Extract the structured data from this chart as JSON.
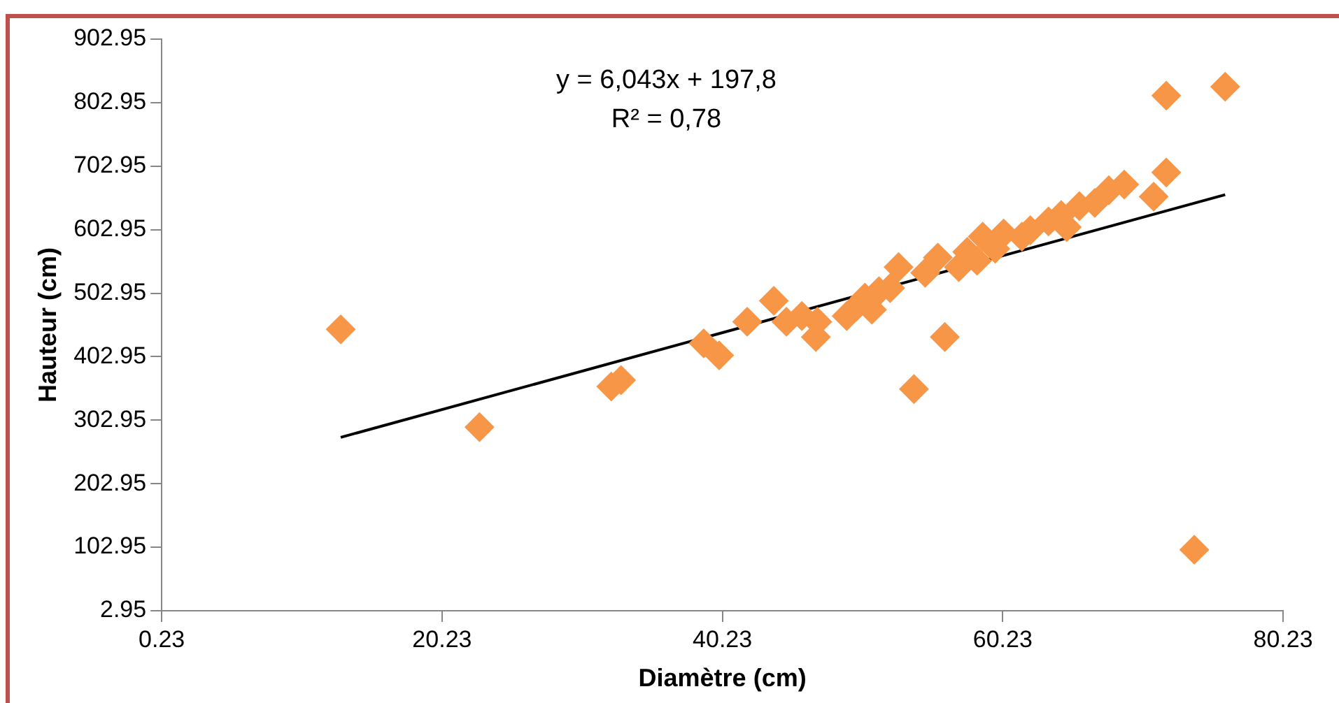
{
  "chart_data": {
    "type": "scatter",
    "xlabel": "Diamètre (cm)",
    "ylabel": "Hauteur (cm)",
    "annotations": [
      "y = 6,043x + 197,8",
      "R² = 0,78"
    ],
    "xlim": [
      0.23,
      80.23
    ],
    "xticks": [
      0.23,
      20.23,
      40.23,
      60.23,
      80.23
    ],
    "ylim": [
      2.95,
      902.95
    ],
    "yticks": [
      2.95,
      102.95,
      202.95,
      302.95,
      402.95,
      502.95,
      602.95,
      702.95,
      802.95,
      902.95
    ],
    "grid": false,
    "legend": false,
    "marker": "diamond",
    "series": [
      {
        "color": "#f79646",
        "x": [
          13.0,
          22.9,
          31.8,
          32.3,
          33.0,
          38.9,
          40.0,
          42.0,
          43.9,
          44.8,
          45.9,
          46.9,
          47.0,
          49.1,
          49.8,
          50.4,
          50.9,
          51.4,
          52.2,
          52.8,
          53.9,
          54.7,
          55.6,
          56.1,
          56.5,
          57.1,
          57.7,
          58.4,
          58.8,
          59.7,
          60.3,
          61.6,
          62.2,
          63.5,
          64.4,
          64.8,
          65.7,
          66.8,
          67.8,
          68.9,
          71.0,
          71.9,
          71.9,
          73.9,
          76.1
        ],
        "values": [
          446,
          292,
          null,
          356,
          366,
          424,
          405,
          458,
          491,
          458,
          467,
          434,
          458,
          467,
          482,
          496,
          477,
          506,
          511,
          544,
          352,
          535,
          559,
          434,
          null,
          544,
          568,
          554,
          592,
          573,
          597,
          592,
          602,
          616,
          626,
          607,
          640,
          645,
          665,
          674,
          655,
          693,
          814,
          99,
          828
        ]
      },
      {
        "type": "line",
        "color": "#000000",
        "marker": "none",
        "x": [
          13.0,
          76.1
        ],
        "values": [
          276,
          658
        ]
      }
    ]
  }
}
